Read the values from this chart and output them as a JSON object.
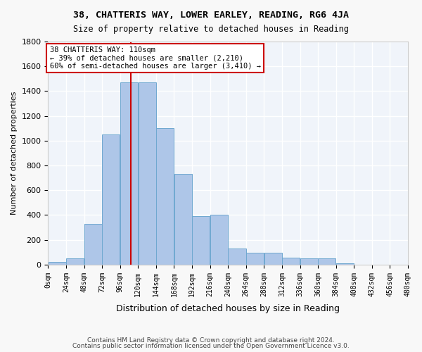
{
  "title1": "38, CHATTERIS WAY, LOWER EARLEY, READING, RG6 4JA",
  "title2": "Size of property relative to detached houses in Reading",
  "xlabel": "Distribution of detached houses by size in Reading",
  "ylabel": "Number of detached properties",
  "bin_edges": [
    0,
    24,
    48,
    72,
    96,
    120,
    144,
    168,
    192,
    216,
    240,
    264,
    288,
    312,
    336,
    360,
    384,
    408,
    432,
    456,
    480
  ],
  "bar_heights": [
    20,
    50,
    330,
    1050,
    1470,
    1470,
    1100,
    730,
    390,
    400,
    130,
    95,
    95,
    55,
    50,
    50,
    10,
    0,
    0,
    0
  ],
  "bar_color": "#aec6e8",
  "bar_edge_color": "#6fa8d0",
  "property_size": 110,
  "annotation_text": "38 CHATTERIS WAY: 110sqm\n← 39% of detached houses are smaller (2,210)\n60% of semi-detached houses are larger (3,410) →",
  "annotation_box_color": "#ffffff",
  "annotation_box_edge_color": "#cc0000",
  "red_line_color": "#cc0000",
  "ylim": [
    0,
    1800
  ],
  "yticks": [
    0,
    200,
    400,
    600,
    800,
    1000,
    1200,
    1400,
    1600,
    1800
  ],
  "footer1": "Contains HM Land Registry data © Crown copyright and database right 2024.",
  "footer2": "Contains public sector information licensed under the Open Government Licence v3.0.",
  "bg_color": "#f0f4fa",
  "grid_color": "#ffffff",
  "tick_labels": [
    "0sqm",
    "24sqm",
    "48sqm",
    "72sqm",
    "96sqm",
    "120sqm",
    "144sqm",
    "168sqm",
    "192sqm",
    "216sqm",
    "240sqm",
    "264sqm",
    "288sqm",
    "312sqm",
    "336sqm",
    "360sqm",
    "384sqm",
    "408sqm",
    "432sqm",
    "456sqm",
    "480sqm"
  ]
}
